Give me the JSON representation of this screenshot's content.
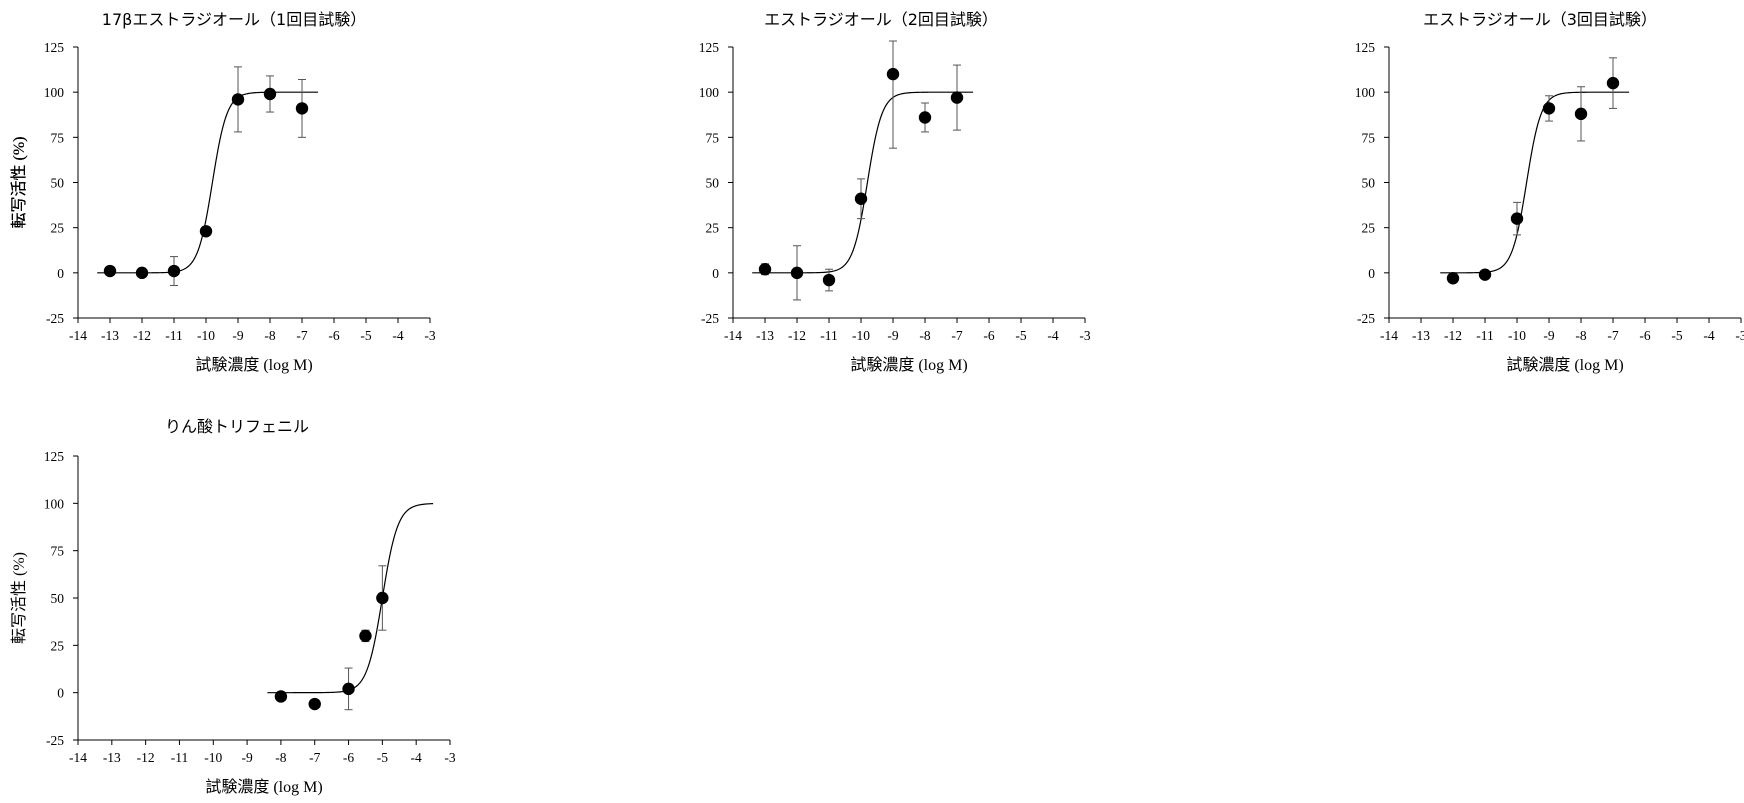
{
  "chart_data": [
    {
      "type": "scatter",
      "title": "17βエストラジオール（1回目試験）",
      "xlabel": "試験濃度 (log M)",
      "ylabel": "転写活性 (%)",
      "xlim": [
        -14,
        -3
      ],
      "ylim": [
        -25,
        125
      ],
      "xticks": [
        -14,
        -13,
        -12,
        -11,
        -10,
        -9,
        -8,
        -7,
        -6,
        -5,
        -4,
        -3
      ],
      "yticks": [
        -25,
        0,
        25,
        50,
        75,
        100,
        125
      ],
      "points": [
        {
          "x": -13,
          "y": 1,
          "err": 0
        },
        {
          "x": -12,
          "y": 0,
          "err": 0
        },
        {
          "x": -11,
          "y": 1,
          "err": 8
        },
        {
          "x": -10,
          "y": 23,
          "err": 2
        },
        {
          "x": -9,
          "y": 96,
          "err": 18
        },
        {
          "x": -8,
          "y": 99,
          "err": 10
        },
        {
          "x": -7,
          "y": 91,
          "err": 16
        }
      ],
      "fit": {
        "bottom": 0,
        "top": 100,
        "ec50": -9.8,
        "hill": 1.0,
        "x_range": [
          -13.4,
          -6.5
        ]
      }
    },
    {
      "type": "scatter",
      "title": "エストラジオール（2回目試験）",
      "xlabel": "試験濃度 (log M)",
      "ylabel": "転写活性 (%)",
      "xlim": [
        -14,
        -3
      ],
      "ylim": [
        -25,
        125
      ],
      "xticks": [
        -14,
        -13,
        -12,
        -11,
        -10,
        -9,
        -8,
        -7,
        -6,
        -5,
        -4,
        -3
      ],
      "yticks": [
        -25,
        0,
        25,
        50,
        75,
        100,
        125
      ],
      "points": [
        {
          "x": -13,
          "y": 2,
          "err": 3
        },
        {
          "x": -12,
          "y": 0,
          "err": 15
        },
        {
          "x": -11,
          "y": -4,
          "err": 6
        },
        {
          "x": -10,
          "y": 41,
          "err": 11
        },
        {
          "x": -9,
          "y": 110,
          "err": 41
        },
        {
          "x": -8,
          "y": 86,
          "err": 8
        },
        {
          "x": -7,
          "y": 97,
          "err": 18
        }
      ],
      "fit": {
        "bottom": 0,
        "top": 100,
        "ec50": -9.8,
        "hill": 1.0,
        "x_range": [
          -13.4,
          -6.5
        ]
      }
    },
    {
      "type": "scatter",
      "title": "エストラジオール（3回目試験）",
      "xlabel": "試験濃度 (log M)",
      "ylabel": "転写活性 (%)",
      "xlim": [
        -14,
        -3
      ],
      "ylim": [
        -25,
        125
      ],
      "xticks": [
        -14,
        -13,
        -12,
        -11,
        -10,
        -9,
        -8,
        -7,
        -6,
        -5,
        -4,
        -3
      ],
      "yticks": [
        -25,
        0,
        25,
        50,
        75,
        100,
        125
      ],
      "points": [
        {
          "x": -12,
          "y": -3,
          "err": 0
        },
        {
          "x": -11,
          "y": -1,
          "err": 0
        },
        {
          "x": -10,
          "y": 30,
          "err": 9
        },
        {
          "x": -9,
          "y": 91,
          "err": 7
        },
        {
          "x": -8,
          "y": 88,
          "err": 15
        },
        {
          "x": -7,
          "y": 105,
          "err": 14
        }
      ],
      "fit": {
        "bottom": 0,
        "top": 100,
        "ec50": -9.7,
        "hill": 1.0,
        "x_range": [
          -12.4,
          -6.5
        ]
      }
    },
    {
      "type": "scatter",
      "title": "りん酸トリフェニル",
      "xlabel": "試験濃度 (log M)",
      "ylabel": "転写活性 (%)",
      "xlim": [
        -14,
        -3
      ],
      "ylim": [
        -25,
        125
      ],
      "xticks": [
        -14,
        -13,
        -12,
        -11,
        -10,
        -9,
        -8,
        -7,
        -6,
        -5,
        -4,
        -3
      ],
      "yticks": [
        -25,
        0,
        25,
        50,
        75,
        100,
        125
      ],
      "points": [
        {
          "x": -8,
          "y": -2,
          "err": 0
        },
        {
          "x": -7,
          "y": -6,
          "err": 0
        },
        {
          "x": -6,
          "y": 2,
          "err": 11
        },
        {
          "x": -5.5,
          "y": 30,
          "err": 3
        },
        {
          "x": -5,
          "y": 50,
          "err": 17
        }
      ],
      "fit": {
        "bottom": 0,
        "top": 100,
        "ec50": -5.0,
        "hill": 1.0,
        "x_range": [
          -8.4,
          -3.5
        ]
      }
    }
  ]
}
